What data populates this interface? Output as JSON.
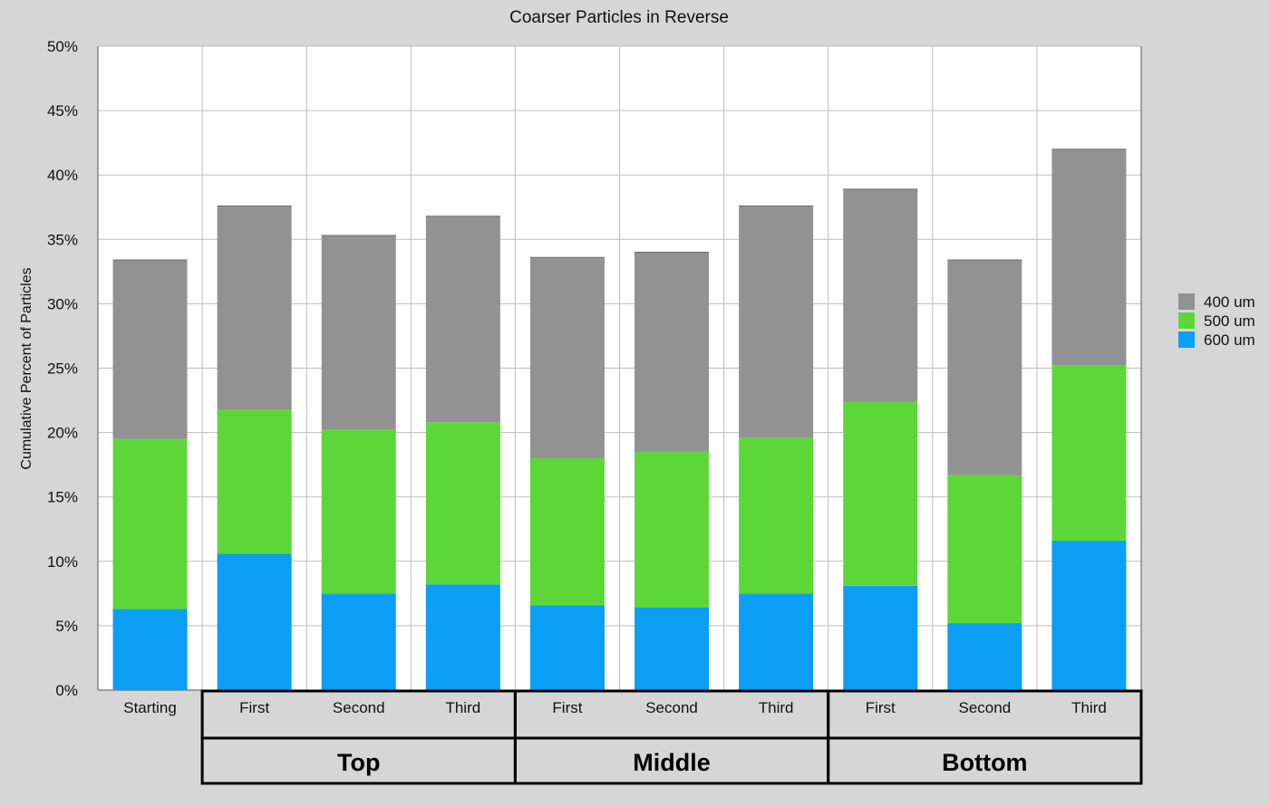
{
  "chart_data": {
    "type": "bar",
    "stacked": true,
    "title": "Coarser Particles in Reverse",
    "xlabel": "",
    "ylabel": "Cumulative Percent of Particles",
    "ylim": [
      0,
      50
    ],
    "yticks": [
      "0%",
      "5%",
      "10%",
      "15%",
      "20%",
      "25%",
      "30%",
      "35%",
      "40%",
      "45%",
      "50%"
    ],
    "y_tick_values": [
      0,
      5,
      10,
      15,
      20,
      25,
      30,
      35,
      40,
      45,
      50
    ],
    "grid": true,
    "legend": "right",
    "categories": [
      "Starting",
      "First",
      "Second",
      "Third",
      "First",
      "Second",
      "Third",
      "First",
      "Second",
      "Third"
    ],
    "groups": [
      {
        "label": "Top",
        "start": 1,
        "end": 3
      },
      {
        "label": "Middle",
        "start": 4,
        "end": 6
      },
      {
        "label": "Bottom",
        "start": 7,
        "end": 9
      }
    ],
    "series": [
      {
        "name": "600 um",
        "color": "#0a9ff5",
        "values": [
          6.3,
          10.6,
          7.5,
          8.2,
          6.6,
          6.4,
          7.5,
          8.1,
          5.2,
          11.6
        ]
      },
      {
        "name": "500 um",
        "color": "#5dd63a",
        "values": [
          13.2,
          11.2,
          12.7,
          12.6,
          11.4,
          12.1,
          12.1,
          14.3,
          11.5,
          13.6
        ]
      },
      {
        "name": "400 um",
        "color": "#929292",
        "values": [
          13.9,
          15.8,
          15.1,
          16.0,
          15.6,
          15.5,
          18.0,
          16.5,
          16.7,
          16.8
        ]
      }
    ],
    "legend_order": [
      "400 um",
      "500 um",
      "600 um"
    ]
  }
}
